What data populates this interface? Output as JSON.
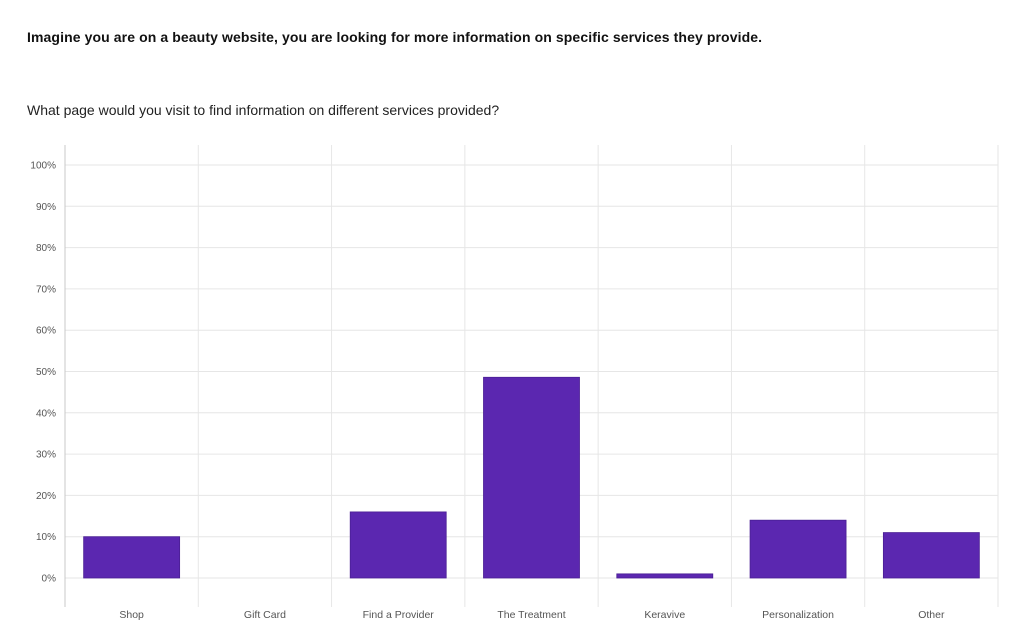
{
  "survey": {
    "heading": "Imagine you are on a beauty website, you are looking for more information on specific services they provide.",
    "question": "What page would you visit to find information on different services provided?"
  },
  "chart_data": {
    "type": "bar",
    "categories": [
      "Shop",
      "Gift Card",
      "Find a Provider",
      "The Treatment",
      "Keravive",
      "Personalization",
      "Other"
    ],
    "values": [
      10,
      0,
      16,
      48.6,
      1,
      14,
      11
    ],
    "y_ticks": [
      "0%",
      "10%",
      "20%",
      "30%",
      "40%",
      "50%",
      "60%",
      "70%",
      "80%",
      "90%",
      "100%"
    ],
    "ylim": [
      0,
      100
    ],
    "grid": true,
    "bar_color": "#5b27b0"
  }
}
